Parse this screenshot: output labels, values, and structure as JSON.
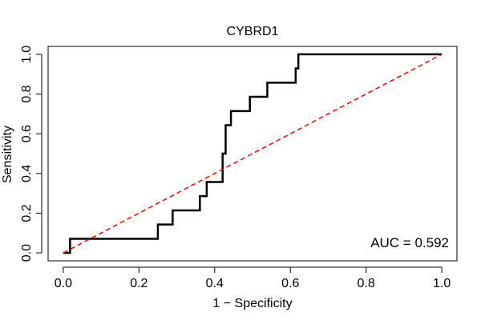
{
  "chart_data": {
    "type": "line",
    "title": "CYBRD1",
    "xlabel": "1 − Specificity",
    "ylabel": "Sensitivity",
    "xlim": [
      0,
      1
    ],
    "ylim": [
      0,
      1
    ],
    "x_ticks": [
      0,
      0.2,
      0.4,
      0.6,
      0.8,
      1
    ],
    "x_tick_labels": [
      "0.0",
      "0.2",
      "0.4",
      "0.6",
      "0.8",
      "1.0"
    ],
    "y_ticks": [
      0,
      0.2,
      0.4,
      0.6,
      0.8,
      1
    ],
    "y_tick_labels": [
      "0.0",
      "0.2",
      "0.4",
      "0.6",
      "0.8",
      "1.0"
    ],
    "grid": false,
    "annotation": "AUC = 0.592",
    "series": [
      {
        "style": "step",
        "color": "#000000",
        "x": [
          0.0,
          0.018,
          0.018,
          0.25,
          0.25,
          0.289,
          0.289,
          0.361,
          0.361,
          0.379,
          0.379,
          0.421,
          0.421,
          0.429,
          0.429,
          0.443,
          0.443,
          0.493,
          0.493,
          0.539,
          0.539,
          0.614,
          0.614,
          0.621,
          0.621,
          1.0
        ],
        "y": [
          0.0,
          0.0,
          0.071,
          0.071,
          0.143,
          0.143,
          0.214,
          0.214,
          0.286,
          0.286,
          0.357,
          0.357,
          0.5,
          0.5,
          0.643,
          0.643,
          0.714,
          0.714,
          0.786,
          0.786,
          0.857,
          0.857,
          0.929,
          0.929,
          1.0,
          1.0
        ]
      },
      {
        "style": "dashed",
        "color": "#ff0000",
        "x": [
          0,
          1
        ],
        "y": [
          0,
          1
        ]
      }
    ]
  }
}
